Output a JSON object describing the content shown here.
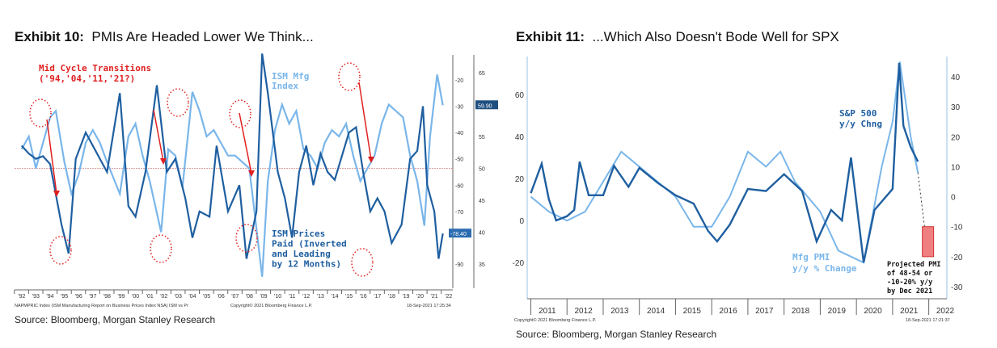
{
  "exhibits": [
    {
      "label": "Exhibit 10:",
      "title": "PMIs Are Headed Lower We Think...",
      "source": "Source: Bloomberg, Morgan Stanley Research"
    },
    {
      "label": "Exhibit 11:",
      "title": "...Which Also Doesn't Bode Well for SPX",
      "source": "Source: Bloomberg, Morgan Stanley Research"
    }
  ],
  "chart_data": [
    {
      "type": "line",
      "x_ticks": [
        "'92",
        "'93",
        "'94",
        "'95",
        "'96",
        "'97",
        "'98",
        "'99",
        "'00",
        "'01",
        "'02",
        "'03",
        "'04",
        "'05",
        "'06",
        "'07",
        "'08",
        "'09",
        "'10",
        "'11",
        "'12",
        "'13",
        "'14",
        "'15",
        "'16",
        "'17",
        "'18",
        "'19",
        "'20",
        "'21",
        "'22"
      ],
      "x_range": [
        1991.5,
        2022.3
      ],
      "y_right_outer": {
        "ticks": [
          65,
          55,
          50,
          45,
          40,
          35
        ],
        "range": [
          30,
          67
        ]
      },
      "y_right_inner": {
        "ticks": [
          -20,
          -30,
          -40,
          -50,
          -60,
          -70,
          -90
        ],
        "range": [
          -10,
          -97
        ]
      },
      "reference_line": 50,
      "annotations": {
        "transitions": "Mid Cycle Transitions",
        "transitions_years": "('94,'04,'11,'21?)",
        "ism_label_1": "ISM Mfg",
        "ism_label_2": "Index",
        "pp_label_1": "ISM Prices",
        "pp_label_2": "Paid (Inverted",
        "pp_label_3": "and Leading",
        "pp_label_4": "by 12 Months)"
      },
      "last_value_tags": [
        "59.90",
        "-78.40"
      ],
      "footer_left": "NAPMPRIC Index (ISM Manufacturing Report on Business Prices Index NSA) ISM vs Pr",
      "footer_mid": "Copyright© 2021 Bloomberg Finance L.P.",
      "footer_right": "18-Sep-2021 17:25:34",
      "colors": {
        "ism": "#7ab6ea",
        "prices": "#1f5fa0",
        "annotation": "#e02020"
      },
      "series": [
        {
          "name": "ISM Mfg Index",
          "axis": "outer",
          "x": [
            1992,
            1992.5,
            1993,
            1993.5,
            1994,
            1994.4,
            1995,
            1995.5,
            1996,
            1996.5,
            1997,
            1997.5,
            1998,
            1998.9,
            1999.5,
            2000,
            2000.5,
            2001,
            2001.8,
            2002.3,
            2002.8,
            2003.3,
            2004,
            2004.5,
            2005,
            2005.5,
            2006,
            2006.5,
            2007,
            2007.5,
            2008,
            2008.9,
            2009.3,
            2009.8,
            2010.3,
            2010.8,
            2011.3,
            2011.8,
            2012.3,
            2012.8,
            2013.3,
            2013.8,
            2014.3,
            2014.8,
            2015.3,
            2015.8,
            2016.3,
            2016.8,
            2017.3,
            2017.8,
            2018.3,
            2018.8,
            2019.3,
            2019.8,
            2020.3,
            2020.7,
            2021.2,
            2021.6
          ],
          "y": [
            53,
            55,
            50,
            54,
            58,
            59,
            51,
            46,
            49,
            54,
            56,
            54,
            51,
            46,
            55,
            57,
            52,
            48,
            40,
            53,
            52,
            47,
            62,
            59,
            55,
            56,
            54,
            52,
            52,
            51,
            50,
            33,
            48,
            56,
            60,
            57,
            59,
            53,
            52,
            50,
            54,
            56,
            55,
            57,
            52,
            48,
            50,
            52,
            57,
            60,
            59,
            58,
            52,
            48,
            41,
            55,
            64.7,
            59.9
          ]
        },
        {
          "name": "ISM Prices Paid (Inverted and Leading by 12 Months)",
          "axis": "inner",
          "x": [
            1992,
            1992.5,
            1993,
            1993.5,
            1994,
            1994.8,
            1995.3,
            1995.8,
            1996.5,
            1997,
            1998,
            1998.9,
            1999.5,
            2000,
            2000.7,
            2001.5,
            2002.2,
            2002.8,
            2003.5,
            2004,
            2004.5,
            2005.2,
            2005.7,
            2006.5,
            2007.3,
            2007.8,
            2008.5,
            2008.9,
            2009.3,
            2010,
            2010.5,
            2011,
            2011.5,
            2012,
            2012.5,
            2013,
            2013.5,
            2014,
            2015,
            2015.5,
            2016,
            2016.5,
            2017,
            2017.5,
            2018,
            2018.7,
            2019.3,
            2019.8,
            2020.2,
            2020.5,
            2021,
            2021.3,
            2021.6
          ],
          "y": [
            -45,
            -48,
            -50,
            -49,
            -52,
            -75,
            -86,
            -50,
            -40,
            -45,
            -55,
            -25,
            -68,
            -72,
            -55,
            -22,
            -55,
            -50,
            -65,
            -80,
            -70,
            -72,
            -45,
            -70,
            -60,
            -88,
            -70,
            -10,
            -25,
            -55,
            -65,
            -80,
            -55,
            -45,
            -60,
            -48,
            -55,
            -58,
            -40,
            -38,
            -55,
            -70,
            -65,
            -70,
            -82,
            -75,
            -50,
            -47,
            -30,
            -60,
            -70,
            -88,
            -78.4
          ]
        }
      ]
    },
    {
      "type": "line",
      "x_ticks": [
        "2011",
        "2012",
        "2013",
        "2014",
        "2015",
        "2016",
        "2017",
        "2018",
        "2019",
        "2020",
        "2021",
        "2022"
      ],
      "x_range": [
        2010.9,
        2022.5
      ],
      "y_left": {
        "ticks": [
          -20,
          0,
          20,
          40,
          60
        ],
        "range": [
          -38,
          78
        ]
      },
      "y_right": {
        "ticks": [
          -30,
          -20,
          -10,
          0,
          10,
          20,
          30,
          40
        ],
        "range": [
          -34,
          46
        ]
      },
      "annotations": {
        "spx_label_1": "S&P 500",
        "spx_label_2": "y/y Chng",
        "pmi_label_1": "Mfg PMI",
        "pmi_label_2": "y/y % Change",
        "proj_1": "Projected PMI",
        "proj_2": "of 48-54 or",
        "proj_3": "-10-20% y/y",
        "proj_4": "by Dec 2021"
      },
      "projection": {
        "x": 2022.0,
        "y_range": [
          -10,
          -20
        ]
      },
      "footer_left": "Copyright© 2021 Bloomberg Finance L.P.",
      "footer_right": "18-Sep-2021 17:21:37",
      "colors": {
        "spx": "#1f5fa0",
        "pmi": "#7ab6ea",
        "projection": "#f08080"
      },
      "series": [
        {
          "name": "S&P 500 y/y Chng",
          "axis": "left",
          "x": [
            2011,
            2011.15,
            2011.3,
            2011.5,
            2011.7,
            2012,
            2012.2,
            2012.35,
            2012.6,
            2013,
            2013.3,
            2013.7,
            2014,
            2014.5,
            2015,
            2015.5,
            2015.9,
            2016.15,
            2016.5,
            2017,
            2017.5,
            2018,
            2018.5,
            2018.9,
            2019.3,
            2019.6,
            2019.85,
            2020.2,
            2020.5,
            2021,
            2021.18,
            2021.3,
            2021.5,
            2021.7
          ],
          "y": [
            13,
            20,
            27,
            10,
            0,
            2,
            5,
            28,
            12,
            12,
            26,
            16,
            25,
            18,
            12,
            8,
            -5,
            -10,
            -2,
            15,
            14,
            22,
            14,
            -10,
            5,
            0,
            30,
            -20,
            5,
            15,
            75,
            45,
            35,
            28
          ]
        },
        {
          "name": "Mfg PMI y/y % Change",
          "axis": "right",
          "x": [
            2011,
            2011.5,
            2012,
            2012.5,
            2013,
            2013.5,
            2014,
            2014.5,
            2015,
            2015.5,
            2016,
            2016.5,
            2017,
            2017.5,
            2017.9,
            2018.3,
            2019,
            2019.5,
            2020.2,
            2020.7,
            2021,
            2021.2,
            2021.5,
            2021.7
          ],
          "y": [
            0,
            -5,
            -8,
            -5,
            5,
            15,
            10,
            5,
            0,
            -10,
            -10,
            0,
            15,
            10,
            15,
            5,
            -5,
            -18,
            -22,
            10,
            25,
            45,
            20,
            8
          ]
        }
      ]
    }
  ]
}
